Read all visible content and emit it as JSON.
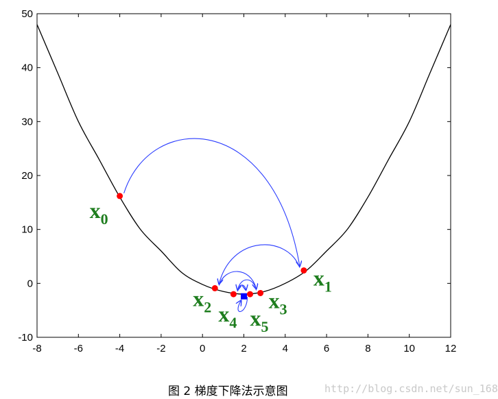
{
  "chart_data": {
    "type": "line",
    "title": "",
    "xlabel": "",
    "ylabel": "",
    "xlim": [
      -8,
      12
    ],
    "ylim": [
      -10,
      50
    ],
    "xticks": [
      -8,
      -6,
      -4,
      -2,
      0,
      2,
      4,
      6,
      8,
      10,
      12
    ],
    "yticks": [
      -10,
      0,
      10,
      20,
      30,
      40,
      50
    ],
    "curve": {
      "x": [
        -8,
        -7,
        -6,
        -5,
        -4,
        -3,
        -2,
        -1,
        0,
        1,
        2,
        3,
        4,
        5,
        6,
        7,
        8,
        9,
        10,
        11,
        12
      ],
      "y": [
        48,
        39,
        30,
        23,
        16,
        10,
        6,
        2,
        -0.2,
        -1.5,
        -2,
        -1.5,
        0,
        2.3,
        6,
        10,
        16,
        23,
        30,
        39,
        48
      ]
    },
    "iterates": [
      {
        "label": "x",
        "sub": "0",
        "x": -4.0,
        "y": 16.2
      },
      {
        "label": "x",
        "sub": "1",
        "x": 4.9,
        "y": 2.4
      },
      {
        "label": "x",
        "sub": "2",
        "x": 0.6,
        "y": -0.9
      },
      {
        "label": "x",
        "sub": "3",
        "x": 2.8,
        "y": -1.8
      },
      {
        "label": "x",
        "sub": "4",
        "x": 1.5,
        "y": -2.0
      },
      {
        "label": "x",
        "sub": "5",
        "x": 2.3,
        "y": -2.0
      }
    ],
    "minimum": {
      "x": 2.0,
      "y": -2.4
    },
    "colors": {
      "curve": "#000000",
      "points": "#ff0000",
      "arrows": "#2a3cff",
      "labels": "#1e7d1e",
      "minimum": "#0000ff"
    }
  },
  "caption": "图 2  梯度下降法示意图",
  "watermark": "http://blog.csdn.net/sun_168"
}
